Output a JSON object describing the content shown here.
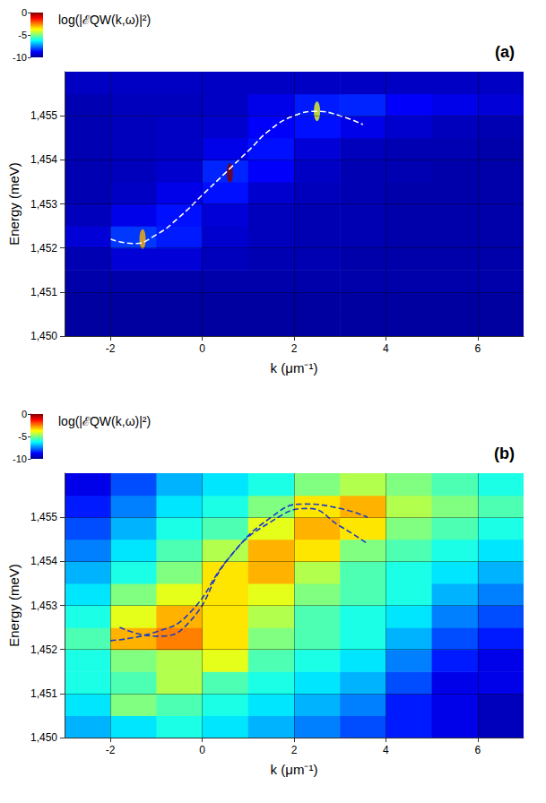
{
  "chart_data": [
    {
      "type": "heatmap",
      "panel": "(a)",
      "x_label": "k (μm⁻¹)",
      "y_label": "Energy (meV)",
      "xlim": [
        -3,
        7
      ],
      "xticks": [
        -2,
        0,
        2,
        4,
        6
      ],
      "ylim": [
        1450,
        1456
      ],
      "yticks": [
        1450,
        1451,
        1452,
        1453,
        1454,
        1455
      ],
      "grid": true,
      "colorbar": {
        "label": "log(|ℰQW(k,ω)|²)",
        "range": [
          -10,
          0
        ],
        "ticks": [
          0,
          -5,
          -10
        ]
      },
      "heatmap": {
        "k": [
          -2.5,
          -1.5,
          -0.5,
          0.5,
          1.5,
          2.5,
          3.5,
          4.5,
          5.5,
          6.5
        ],
        "energy": [
          1450.25,
          1450.75,
          1451.25,
          1451.75,
          1452.25,
          1452.75,
          1453.25,
          1453.75,
          1454.25,
          1454.75,
          1455.25,
          1455.75
        ],
        "cells": [
          [
            -9.8,
            -9.8,
            -9.8,
            -9.8,
            -9.8,
            -9.8,
            -9.8,
            -9.8,
            -9.8,
            -9.8
          ],
          [
            -9.8,
            -9.8,
            -9.8,
            -9.8,
            -9.8,
            -9.8,
            -9.8,
            -9.8,
            -9.8,
            -9.8
          ],
          [
            -9.7,
            -9.7,
            -9.7,
            -9.7,
            -9.7,
            -9.7,
            -9.7,
            -9.7,
            -9.7,
            -9.7
          ],
          [
            -9.6,
            -9.2,
            -9.2,
            -9.5,
            -9.6,
            -9.6,
            -9.7,
            -9.7,
            -9.7,
            -9.7
          ],
          [
            -9.2,
            -8.2,
            -8.5,
            -9.3,
            -9.5,
            -9.6,
            -9.6,
            -9.7,
            -9.7,
            -9.7
          ],
          [
            -9.5,
            -9.0,
            -8.6,
            -9.2,
            -9.5,
            -9.6,
            -9.6,
            -9.7,
            -9.7,
            -9.7
          ],
          [
            -9.6,
            -9.4,
            -9.0,
            -8.6,
            -9.3,
            -9.5,
            -9.6,
            -9.7,
            -9.7,
            -9.7
          ],
          [
            -9.6,
            -9.5,
            -9.3,
            -8.4,
            -8.8,
            -9.4,
            -9.6,
            -9.6,
            -9.7,
            -9.7
          ],
          [
            -9.6,
            -9.5,
            -9.4,
            -9.0,
            -8.6,
            -9.2,
            -9.5,
            -9.6,
            -9.6,
            -9.7
          ],
          [
            -9.6,
            -9.5,
            -9.4,
            -9.3,
            -8.8,
            -8.6,
            -9.0,
            -9.3,
            -9.5,
            -9.6
          ],
          [
            -9.6,
            -9.5,
            -9.5,
            -9.4,
            -9.0,
            -8.5,
            -8.4,
            -8.8,
            -9.0,
            -9.2
          ],
          [
            -9.4,
            -9.4,
            -9.4,
            -9.4,
            -9.4,
            -9.4,
            -9.4,
            -9.4,
            -9.4,
            -9.4
          ]
        ]
      },
      "peaks": [
        [
          -1.3,
          1452.2,
          -3
        ],
        [
          0.6,
          1453.7,
          0
        ],
        [
          2.5,
          1455.1,
          -4
        ]
      ],
      "series": [
        {
          "color": "#ffffff",
          "line_style": "dashed",
          "x": [
            -2.0,
            -1.5,
            -1.0,
            -0.5,
            0.0,
            0.5,
            1.0,
            1.5,
            2.0,
            2.5,
            3.0,
            3.5
          ],
          "values": [
            1452.2,
            1452.1,
            1452.3,
            1452.7,
            1453.2,
            1453.7,
            1454.2,
            1454.7,
            1455.0,
            1455.1,
            1455.0,
            1454.8
          ]
        }
      ]
    },
    {
      "type": "heatmap",
      "panel": "(b)",
      "x_label": "k (μm⁻¹)",
      "y_label": "Energy (meV)",
      "xlim": [
        -3,
        7
      ],
      "xticks": [
        -2,
        0,
        2,
        4,
        6
      ],
      "ylim": [
        1450,
        1456
      ],
      "yticks": [
        1450,
        1451,
        1452,
        1453,
        1454,
        1455
      ],
      "grid": true,
      "colorbar": {
        "label": "log(|ℰQW(k,ω)|²)",
        "range": [
          -10,
          0
        ],
        "ticks": [
          0,
          -5,
          -10
        ]
      },
      "heatmap": {
        "k": [
          -2.5,
          -1.5,
          -0.5,
          0.5,
          1.5,
          2.5,
          3.5,
          4.5,
          5.5,
          6.5
        ],
        "energy": [
          1450.25,
          1450.75,
          1451.25,
          1451.75,
          1452.25,
          1452.75,
          1453.25,
          1453.75,
          1454.25,
          1454.75,
          1455.25,
          1455.75
        ],
        "cells": [
          [
            -7.0,
            -6.5,
            -6.0,
            -6.5,
            -7.0,
            -7.5,
            -8.0,
            -8.5,
            -9.0,
            -9.5
          ],
          [
            -6.5,
            -5.0,
            -5.5,
            -6.0,
            -6.5,
            -7.0,
            -7.5,
            -8.5,
            -9.0,
            -9.5
          ],
          [
            -6.0,
            -5.5,
            -4.5,
            -5.5,
            -6.0,
            -6.5,
            -7.0,
            -8.0,
            -9.0,
            -9.0
          ],
          [
            -6.0,
            -5.0,
            -4.5,
            -4.0,
            -5.5,
            -6.0,
            -6.5,
            -7.5,
            -8.5,
            -9.0
          ],
          [
            -5.5,
            -3.0,
            -2.5,
            -3.5,
            -5.0,
            -5.5,
            -6.0,
            -7.0,
            -8.0,
            -8.5
          ],
          [
            -6.0,
            -4.0,
            -3.0,
            -3.5,
            -4.5,
            -5.5,
            -6.0,
            -6.5,
            -7.5,
            -8.0
          ],
          [
            -6.5,
            -5.0,
            -4.0,
            -3.5,
            -4.0,
            -5.0,
            -5.5,
            -6.0,
            -7.0,
            -7.5
          ],
          [
            -7.0,
            -6.0,
            -5.0,
            -3.5,
            -3.0,
            -4.5,
            -5.5,
            -6.0,
            -6.5,
            -7.0
          ],
          [
            -7.5,
            -6.5,
            -5.5,
            -4.5,
            -3.0,
            -3.5,
            -5.0,
            -5.5,
            -6.0,
            -6.5
          ],
          [
            -8.0,
            -7.0,
            -6.0,
            -5.5,
            -4.0,
            -3.0,
            -3.5,
            -5.0,
            -5.5,
            -6.0
          ],
          [
            -8.5,
            -7.5,
            -6.5,
            -6.0,
            -5.0,
            -3.5,
            -3.0,
            -4.5,
            -5.0,
            -5.5
          ],
          [
            -9.0,
            -8.0,
            -7.0,
            -6.5,
            -6.0,
            -5.0,
            -4.5,
            -5.0,
            -5.5,
            -6.0
          ]
        ]
      },
      "peaks": [],
      "series": [
        {
          "color": "#1a3cc8",
          "line_style": "dashed",
          "x": [
            -2.0,
            -1.0,
            -0.3,
            0.6,
            1.5,
            2.2,
            3.0,
            3.6
          ],
          "values": [
            1452.2,
            1452.4,
            1452.8,
            1454.1,
            1455.0,
            1455.3,
            1455.2,
            1455.0
          ]
        },
        {
          "color": "#1a3cc8",
          "line_style": "dashed",
          "x": [
            -1.8,
            -1.0,
            -0.3,
            0.6,
            1.5,
            2.3,
            3.0,
            3.6
          ],
          "values": [
            1452.5,
            1452.3,
            1452.6,
            1454.1,
            1454.9,
            1455.2,
            1454.8,
            1454.4
          ]
        }
      ]
    }
  ]
}
